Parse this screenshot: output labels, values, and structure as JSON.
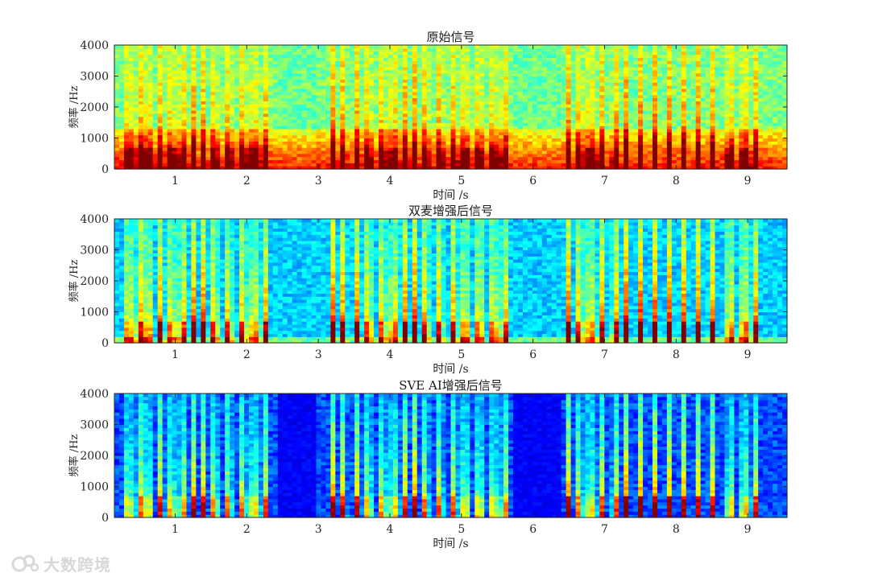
{
  "chart_data": [
    {
      "type": "heatmap",
      "title": "原始信号",
      "xlabel": "时间 /s",
      "ylabel": "频率 /Hz",
      "xlim": [
        0.15,
        9.55
      ],
      "ylim": [
        0,
        4000
      ],
      "xticks": [
        1,
        2,
        3,
        4,
        5,
        6,
        7,
        8,
        9
      ],
      "yticks": [
        0,
        1000,
        2000,
        3000,
        4000
      ],
      "colormap": "jet",
      "background_level": 0.5,
      "speech_segments": [
        [
          0.3,
          2.4
        ],
        [
          3.0,
          5.7
        ],
        [
          6.4,
          9.2
        ]
      ],
      "silence_segments": [
        [
          2.4,
          3.0
        ],
        [
          5.7,
          6.4
        ]
      ]
    },
    {
      "type": "heatmap",
      "title": "双麦增强后信号",
      "xlabel": "时间 /s",
      "ylabel": "频率 /Hz",
      "xlim": [
        0.15,
        9.55
      ],
      "ylim": [
        0,
        4000
      ],
      "xticks": [
        1,
        2,
        3,
        4,
        5,
        6,
        7,
        8,
        9
      ],
      "yticks": [
        0,
        1000,
        2000,
        3000,
        4000
      ],
      "colormap": "jet",
      "background_level": 0.33,
      "speech_segments": [
        [
          0.3,
          2.4
        ],
        [
          3.0,
          5.7
        ],
        [
          6.4,
          9.2
        ]
      ],
      "silence_segments": [
        [
          2.4,
          3.0
        ],
        [
          5.7,
          6.4
        ]
      ]
    },
    {
      "type": "heatmap",
      "title": "SVE AI增强后信号",
      "xlabel": "时间 /s",
      "ylabel": "频率 /Hz",
      "xlim": [
        0.15,
        9.55
      ],
      "ylim": [
        0,
        4000
      ],
      "xticks": [
        1,
        2,
        3,
        4,
        5,
        6,
        7,
        8,
        9
      ],
      "yticks": [
        0,
        1000,
        2000,
        3000,
        4000
      ],
      "colormap": "jet",
      "background_level": 0.2,
      "speech_segments": [
        [
          0.3,
          2.4
        ],
        [
          3.0,
          5.7
        ],
        [
          6.4,
          9.2
        ]
      ],
      "silence_segments": [
        [
          2.4,
          3.0
        ],
        [
          5.7,
          6.4
        ]
      ]
    }
  ],
  "watermark": {
    "text": "大数跨境"
  }
}
